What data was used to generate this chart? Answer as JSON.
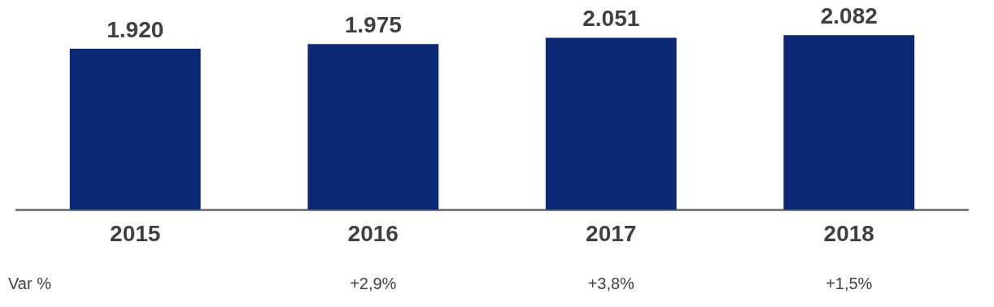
{
  "chart_data": {
    "type": "bar",
    "categories": [
      "2015",
      "2016",
      "2017",
      "2018"
    ],
    "values": [
      1920,
      1975,
      2051,
      2082
    ],
    "value_labels": [
      "1.920",
      "1.975",
      "2.051",
      "2.082"
    ],
    "color": "#0b2875",
    "grid": false,
    "legend": false,
    "tick_labels": "x",
    "annotations": [
      "Var %",
      "+2,9%",
      "+3,8%",
      "+1,5%"
    ]
  }
}
